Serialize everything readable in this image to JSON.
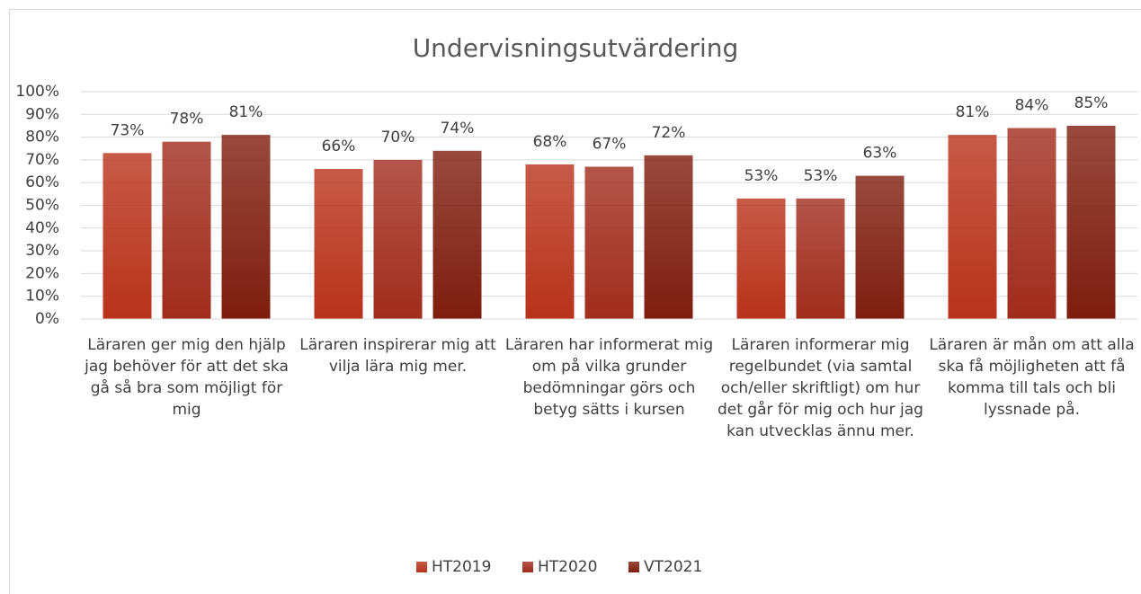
{
  "chart_data": {
    "type": "bar",
    "title": "Undervisningsutvärdering",
    "categories": [
      "Läraren ger mig den hjälp jag behöver för att det ska gå så bra som möjligt för mig",
      "Läraren inspirerar mig att vilja lära mig mer.",
      "Läraren har informerat mig om på vilka grunder bedömningar görs och betyg sätts i kursen",
      "Läraren informerar mig regelbundet (via samtal och/eller skriftligt) om hur det går för mig och hur jag kan utvecklas ännu mer.",
      "Läraren är mån om att alla ska få möjligheten att få komma till tals och bli lyssnade på."
    ],
    "series": [
      {
        "name": "HT2019",
        "color": "#b8321a",
        "values": [
          73,
          66,
          68,
          53,
          81
        ],
        "value_labels": [
          "73%",
          "66%",
          "68%",
          "53%",
          "81%"
        ]
      },
      {
        "name": "HT2020",
        "color": "#a02c1c",
        "values": [
          78,
          70,
          67,
          53,
          84
        ],
        "value_labels": [
          "78%",
          "70%",
          "67%",
          "53%",
          "84%"
        ]
      },
      {
        "name": "VT2021",
        "color": "#7e1d0e",
        "values": [
          81,
          74,
          72,
          63,
          85
        ],
        "value_labels": [
          "81%",
          "74%",
          "72%",
          "63%",
          "85%"
        ]
      }
    ],
    "ylim": [
      0,
      100
    ],
    "yticks": [
      {
        "value": 0,
        "label": "0%"
      },
      {
        "value": 10,
        "label": "10%"
      },
      {
        "value": 20,
        "label": "20%"
      },
      {
        "value": 30,
        "label": "30%"
      },
      {
        "value": 40,
        "label": "40%"
      },
      {
        "value": 50,
        "label": "50%"
      },
      {
        "value": 60,
        "label": "60%"
      },
      {
        "value": 70,
        "label": "70%"
      },
      {
        "value": 80,
        "label": "80%"
      },
      {
        "value": 90,
        "label": "90%"
      },
      {
        "value": 100,
        "label": "100%"
      }
    ],
    "grid": true,
    "legend": "bottom"
  }
}
